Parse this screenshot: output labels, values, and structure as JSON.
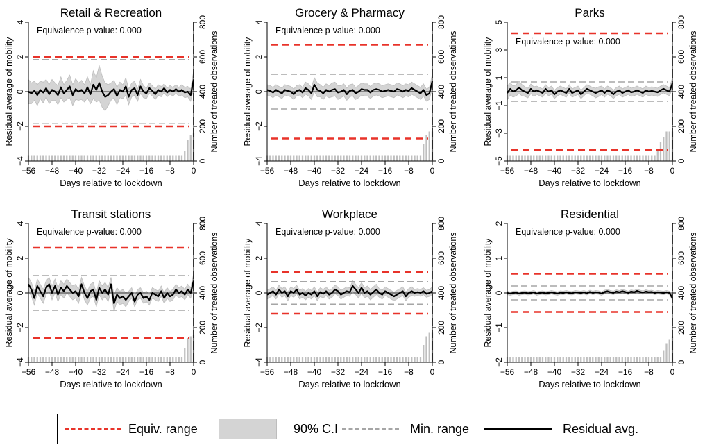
{
  "chart_data": [
    {
      "type": "line",
      "title": "Retail & Recreation",
      "xlabel": "Days relative to lockdown",
      "ylabel": "Residual average of mobility",
      "ylabel2": "Number of treated observations",
      "annotation": "Equivalence p-value: 0.000",
      "xlim": [
        -56,
        0
      ],
      "ylim": [
        -4,
        4
      ],
      "yticks": [
        -4,
        -2,
        0,
        2,
        4
      ],
      "y2lim": [
        0,
        800
      ],
      "y2ticks": [
        0,
        200,
        400,
        600,
        800
      ],
      "equiv_range": [
        -2,
        2
      ],
      "min_range": [
        -1.85,
        1.85
      ],
      "residual": [
        0,
        -0.1,
        0.05,
        -0.2,
        0.1,
        -0.05,
        0.2,
        -0.15,
        0.1,
        0,
        -0.2,
        0.25,
        -0.1,
        0.1,
        0.3,
        -0.2,
        0.15,
        0,
        0.1,
        -0.1,
        0.25,
        -0.15,
        0.4,
        0.1,
        0.5,
        0,
        -0.3,
        -0.2,
        0,
        0.15,
        -0.25,
        0.1,
        0,
        0.3,
        -0.3,
        0.1,
        0.2,
        -0.2,
        0.3,
        0,
        -0.1,
        0.2,
        0.05,
        -0.15,
        0.1,
        0,
        0.2,
        -0.05,
        0.1,
        0,
        0.15,
        0,
        0.1,
        -0.05,
        0,
        -0.2,
        0.7
      ],
      "ci_halfwidth": [
        0.7,
        0.6,
        0.55,
        0.6,
        0.5,
        0.6,
        0.5,
        0.55,
        0.6,
        0.5,
        0.55,
        0.6,
        0.5,
        0.55,
        0.65,
        0.6,
        0.6,
        0.5,
        0.55,
        0.5,
        0.6,
        0.55,
        0.8,
        0.7,
        1,
        0.9,
        0.8,
        0.6,
        0.5,
        0.5,
        0.5,
        0.45,
        0.4,
        0.5,
        0.45,
        0.4,
        0.4,
        0.35,
        0.4,
        0.35,
        0.3,
        0.3,
        0.3,
        0.3,
        0.3,
        0.3,
        0.25,
        0.25,
        0.25,
        0.25,
        0.25,
        0.25,
        0.3,
        0.3,
        0.3,
        0.35,
        0.5
      ],
      "bars": [
        30,
        30,
        30,
        30,
        30,
        30,
        30,
        30,
        30,
        30,
        30,
        30,
        30,
        30,
        30,
        30,
        30,
        30,
        30,
        30,
        30,
        30,
        30,
        30,
        30,
        30,
        30,
        30,
        30,
        30,
        30,
        30,
        30,
        30,
        30,
        30,
        30,
        30,
        30,
        30,
        30,
        30,
        30,
        30,
        30,
        30,
        30,
        30,
        30,
        30,
        30,
        30,
        30,
        60,
        120,
        150,
        160
      ]
    },
    {
      "type": "line",
      "title": "Grocery & Pharmacy",
      "xlabel": "Days relative to lockdown",
      "ylabel": "Residual average of mobility",
      "ylabel2": "Number of treated observations",
      "annotation": "Equivalence p-value: 0.000",
      "xlim": [
        -56,
        0
      ],
      "ylim": [
        -4,
        4
      ],
      "yticks": [
        -4,
        -2,
        0,
        2,
        4
      ],
      "y2lim": [
        0,
        800
      ],
      "y2ticks": [
        0,
        200,
        400,
        600,
        800
      ],
      "equiv_range": [
        -2.7,
        2.7
      ],
      "min_range": [
        -1,
        1
      ],
      "residual": [
        0.1,
        0.05,
        -0.05,
        0.1,
        0,
        -0.1,
        0.1,
        0.05,
        0,
        -0.15,
        0.05,
        0.1,
        -0.05,
        0.2,
        0.1,
        -0.1,
        0.4,
        0.1,
        0.05,
        -0.1,
        0.1,
        0,
        0.1,
        0.15,
        -0.05,
        0,
        0.1,
        -0.15,
        0.05,
        0.1,
        -0.1,
        0,
        0.15,
        0.1,
        0.1,
        -0.05,
        0.1,
        0.15,
        0.1,
        0,
        0.05,
        0.1,
        0.05,
        0,
        0.15,
        0.1,
        0,
        0.1,
        0.05,
        0.2,
        0.1,
        0,
        -0.1,
        0.1,
        -0.2,
        -0.1,
        0.6
      ],
      "ci_halfwidth": [
        0.3,
        0.3,
        0.3,
        0.3,
        0.3,
        0.3,
        0.3,
        0.3,
        0.3,
        0.3,
        0.3,
        0.3,
        0.3,
        0.35,
        0.35,
        0.35,
        0.4,
        0.4,
        0.35,
        0.35,
        0.35,
        0.35,
        0.4,
        0.4,
        0.4,
        0.35,
        0.35,
        0.35,
        0.35,
        0.35,
        0.35,
        0.35,
        0.35,
        0.35,
        0.35,
        0.35,
        0.35,
        0.35,
        0.35,
        0.35,
        0.35,
        0.35,
        0.35,
        0.35,
        0.35,
        0.35,
        0.35,
        0.35,
        0.35,
        0.35,
        0.35,
        0.35,
        0.35,
        0.35,
        0.35,
        0.35,
        0.4
      ],
      "bars": [
        30,
        30,
        30,
        30,
        30,
        30,
        30,
        30,
        30,
        30,
        30,
        30,
        30,
        30,
        30,
        30,
        30,
        30,
        30,
        30,
        30,
        30,
        30,
        30,
        30,
        30,
        30,
        30,
        30,
        30,
        30,
        30,
        30,
        30,
        30,
        30,
        30,
        30,
        30,
        30,
        30,
        30,
        30,
        30,
        30,
        30,
        30,
        30,
        30,
        30,
        30,
        30,
        30,
        100,
        150,
        170,
        170
      ]
    },
    {
      "type": "line",
      "title": "Parks",
      "xlabel": "Days relative to lockdown",
      "ylabel": "Residual average of mobility",
      "ylabel2": "Number of treated observations",
      "annotation": "Equivalence p-value: 0.000",
      "xlim": [
        -56,
        0
      ],
      "ylim": [
        -5,
        5
      ],
      "yticks": [
        -5,
        -3,
        -1,
        1,
        3,
        5
      ],
      "y2lim": [
        0,
        800
      ],
      "y2ticks": [
        0,
        200,
        400,
        600,
        800
      ],
      "equiv_range": [
        -4.2,
        4.2
      ],
      "min_range": [
        -0.7,
        0.7
      ],
      "residual": [
        -0.1,
        0.2,
        0,
        0.1,
        0.3,
        0.1,
        0,
        -0.1,
        0.2,
        0,
        0.1,
        0,
        -0.1,
        0.2,
        0,
        0.1,
        -0.2,
        0,
        0.1,
        0,
        -0.1,
        0.2,
        -0.1,
        0,
        0.1,
        -0.2,
        0,
        0.2,
        0.1,
        0,
        -0.1,
        0,
        0.1,
        -0.1,
        0.1,
        0,
        -0.2,
        0,
        0.1,
        -0.1,
        0,
        0.1,
        -0.05,
        0,
        0.1,
        0,
        -0.1,
        0.1,
        0,
        0.05,
        0,
        -0.05,
        0.1,
        0.2,
        0.1,
        0,
        0.6
      ],
      "ci_halfwidth": [
        0.5,
        0.45,
        0.4,
        0.4,
        0.45,
        0.4,
        0.35,
        0.35,
        0.35,
        0.35,
        0.3,
        0.3,
        0.3,
        0.3,
        0.3,
        0.3,
        0.3,
        0.3,
        0.3,
        0.3,
        0.3,
        0.3,
        0.3,
        0.3,
        0.3,
        0.3,
        0.3,
        0.3,
        0.3,
        0.3,
        0.35,
        0.35,
        0.3,
        0.3,
        0.3,
        0.3,
        0.3,
        0.3,
        0.3,
        0.3,
        0.3,
        0.3,
        0.3,
        0.3,
        0.3,
        0.3,
        0.3,
        0.3,
        0.3,
        0.3,
        0.3,
        0.3,
        0.3,
        0.3,
        0.3,
        0.3,
        0.4
      ],
      "bars": [
        30,
        30,
        30,
        30,
        30,
        30,
        30,
        30,
        30,
        30,
        30,
        30,
        30,
        30,
        30,
        30,
        30,
        30,
        30,
        30,
        30,
        30,
        30,
        30,
        30,
        30,
        30,
        30,
        30,
        30,
        30,
        30,
        30,
        30,
        30,
        30,
        30,
        30,
        30,
        30,
        30,
        30,
        30,
        30,
        30,
        30,
        30,
        30,
        30,
        30,
        30,
        70,
        110,
        140,
        170,
        170,
        170
      ]
    },
    {
      "type": "line",
      "title": "Transit stations",
      "xlabel": "Days relative to lockdown",
      "ylabel": "Residual average of mobility",
      "ylabel2": "Number of treated observations",
      "annotation": "Equivalence p-value: 0.000",
      "xlim": [
        -56,
        0
      ],
      "ylim": [
        -4,
        4
      ],
      "yticks": [
        -4,
        -2,
        0,
        2,
        4
      ],
      "y2lim": [
        0,
        800
      ],
      "y2ticks": [
        0,
        200,
        400,
        600,
        800
      ],
      "equiv_range": [
        -2.6,
        2.6
      ],
      "min_range": [
        -1,
        1
      ],
      "residual": [
        0.5,
        0.2,
        -0.3,
        0.4,
        0.1,
        -0.2,
        0.3,
        0.5,
        0,
        0.4,
        -0.1,
        0.3,
        0.1,
        0.4,
        0.2,
        0,
        0.1,
        -0.2,
        0.5,
        0,
        -0.3,
        0.1,
        0.2,
        -0.4,
        0.3,
        0,
        0.2,
        -0.1,
        0.5,
        -0.6,
        -0.1,
        -0.3,
        -0.2,
        -0.4,
        -0.2,
        0,
        -0.5,
        -0.1,
        0,
        -0.3,
        -0.2,
        -0.4,
        0,
        -0.1,
        -0.2,
        0.1,
        -0.3,
        0,
        -0.2,
        -0.1,
        0.2,
        0,
        0.1,
        -0.1,
        0.2,
        0,
        0.7
      ],
      "ci_halfwidth": [
        0.4,
        0.4,
        0.4,
        0.4,
        0.4,
        0.4,
        0.4,
        0.4,
        0.4,
        0.4,
        0.4,
        0.4,
        0.4,
        0.4,
        0.4,
        0.4,
        0.4,
        0.4,
        0.4,
        0.4,
        0.4,
        0.4,
        0.4,
        0.4,
        0.4,
        0.4,
        0.4,
        0.4,
        0.4,
        0.45,
        0.4,
        0.4,
        0.4,
        0.4,
        0.3,
        0.3,
        0.3,
        0.3,
        0.3,
        0.3,
        0.3,
        0.3,
        0.3,
        0.3,
        0.3,
        0.3,
        0.3,
        0.3,
        0.3,
        0.3,
        0.3,
        0.3,
        0.3,
        0.3,
        0.3,
        0.3,
        0.4
      ],
      "bars": [
        30,
        30,
        30,
        30,
        30,
        30,
        30,
        30,
        30,
        30,
        30,
        30,
        30,
        30,
        30,
        30,
        30,
        30,
        30,
        30,
        30,
        30,
        30,
        30,
        30,
        30,
        30,
        30,
        30,
        30,
        30,
        30,
        30,
        30,
        30,
        30,
        30,
        30,
        30,
        30,
        30,
        30,
        30,
        30,
        30,
        30,
        30,
        30,
        30,
        30,
        30,
        30,
        30,
        80,
        140,
        150,
        160
      ]
    },
    {
      "type": "line",
      "title": "Workplace",
      "xlabel": "Days relative to lockdown",
      "ylabel": "Residual average of mobility",
      "ylabel2": "Number of treated observations",
      "annotation": "Equivalence p-value: 0.000",
      "xlim": [
        -56,
        0
      ],
      "ylim": [
        -4,
        4
      ],
      "yticks": [
        -4,
        -2,
        0,
        2,
        4
      ],
      "y2lim": [
        0,
        800
      ],
      "y2ticks": [
        0,
        200,
        400,
        600,
        800
      ],
      "equiv_range": [
        -1.2,
        1.2
      ],
      "min_range": [
        -0.65,
        0.65
      ],
      "residual": [
        -0.1,
        0,
        0.1,
        -0.1,
        0.2,
        0,
        0.1,
        -0.2,
        0.1,
        0,
        0.2,
        -0.1,
        0,
        -0.15,
        0,
        -0.1,
        0.1,
        -0.2,
        0.05,
        -0.05,
        0.1,
        -0.1,
        0,
        0.2,
        0.1,
        -0.1,
        0,
        0.1,
        0.05,
        0.4,
        0.2,
        0,
        0.3,
        0,
        0.1,
        -0.1,
        0.05,
        0.2,
        0,
        -0.1,
        0.1,
        0,
        -0.1,
        -0.2,
        -0.1,
        0,
        0.1,
        -0.2,
        0,
        0.1,
        0,
        0.05,
        0,
        0.1,
        -0.05,
        0,
        0.1
      ],
      "ci_halfwidth": [
        0.25,
        0.25,
        0.25,
        0.25,
        0.25,
        0.25,
        0.25,
        0.25,
        0.25,
        0.25,
        0.25,
        0.25,
        0.25,
        0.25,
        0.25,
        0.25,
        0.25,
        0.25,
        0.25,
        0.25,
        0.25,
        0.25,
        0.25,
        0.25,
        0.25,
        0.25,
        0.25,
        0.25,
        0.25,
        0.3,
        0.3,
        0.3,
        0.3,
        0.3,
        0.3,
        0.3,
        0.3,
        0.3,
        0.25,
        0.25,
        0.25,
        0.25,
        0.25,
        0.25,
        0.25,
        0.25,
        0.25,
        0.25,
        0.25,
        0.25,
        0.2,
        0.2,
        0.2,
        0.2,
        0.2,
        0.2,
        0.25
      ],
      "bars": [
        30,
        30,
        30,
        30,
        30,
        30,
        30,
        30,
        30,
        30,
        30,
        30,
        30,
        30,
        30,
        30,
        30,
        30,
        30,
        30,
        30,
        30,
        30,
        30,
        30,
        30,
        30,
        30,
        30,
        30,
        30,
        30,
        30,
        30,
        30,
        30,
        30,
        30,
        30,
        30,
        30,
        30,
        30,
        30,
        30,
        30,
        30,
        30,
        30,
        30,
        30,
        30,
        30,
        100,
        150,
        170,
        170
      ]
    },
    {
      "type": "line",
      "title": "Residential",
      "xlabel": "Days relative to lockdown",
      "ylabel": "Residual average of mobility",
      "ylabel2": "Number of treated observations",
      "annotation": "Equivalence p-value: 0.000",
      "xlim": [
        -56,
        0
      ],
      "ylim": [
        -2,
        2
      ],
      "yticks": [
        -2,
        -1,
        0,
        1,
        2
      ],
      "y2lim": [
        0,
        800
      ],
      "y2ticks": [
        0,
        200,
        400,
        600,
        800
      ],
      "equiv_range": [
        -0.55,
        0.55
      ],
      "min_range": [
        -0.2,
        0.2
      ],
      "residual": [
        0,
        -0.02,
        0,
        0.01,
        -0.02,
        0,
        0.01,
        -0.01,
        0,
        0.02,
        -0.02,
        0,
        0.01,
        -0.01,
        0,
        0.02,
        0,
        -0.02,
        0.01,
        0,
        0.02,
        0,
        -0.01,
        0.02,
        0.01,
        0,
        0.02,
        -0.01,
        0.03,
        0,
        0.02,
        0.01,
        -0.02,
        0.03,
        0.05,
        0.02,
        0,
        0.04,
        0.02,
        0.05,
        0.03,
        0,
        0.04,
        0.02,
        0.06,
        0.03,
        0.01,
        0.04,
        0.02,
        0.03,
        0,
        0.02,
        0.01,
        0,
        0.02,
        0,
        -0.15
      ],
      "ci_halfwidth": [
        0.05,
        0.05,
        0.05,
        0.05,
        0.05,
        0.05,
        0.05,
        0.05,
        0.05,
        0.05,
        0.05,
        0.05,
        0.05,
        0.05,
        0.05,
        0.05,
        0.05,
        0.05,
        0.05,
        0.05,
        0.05,
        0.05,
        0.05,
        0.05,
        0.05,
        0.05,
        0.05,
        0.05,
        0.05,
        0.05,
        0.05,
        0.05,
        0.05,
        0.05,
        0.05,
        0.05,
        0.05,
        0.05,
        0.05,
        0.05,
        0.05,
        0.05,
        0.05,
        0.05,
        0.05,
        0.05,
        0.05,
        0.05,
        0.05,
        0.05,
        0.05,
        0.05,
        0.05,
        0.05,
        0.05,
        0.05,
        0.06
      ],
      "bars": [
        30,
        30,
        30,
        30,
        30,
        30,
        30,
        30,
        30,
        30,
        30,
        30,
        30,
        30,
        30,
        30,
        30,
        30,
        30,
        30,
        30,
        30,
        30,
        30,
        30,
        30,
        30,
        30,
        30,
        30,
        30,
        30,
        30,
        30,
        30,
        30,
        30,
        30,
        30,
        30,
        30,
        30,
        30,
        30,
        30,
        30,
        30,
        30,
        30,
        30,
        30,
        30,
        30,
        70,
        110,
        130,
        150
      ]
    }
  ],
  "legend": {
    "items": [
      {
        "label": "Equiv. range"
      },
      {
        "label": "90% C.I"
      },
      {
        "label": "Min. range"
      },
      {
        "label": "Residual avg."
      }
    ]
  },
  "colors": {
    "equiv": "#e8332a",
    "min": "#a6a6a6",
    "ci_fill": "#d4d4d4",
    "ci_edge": "#bdbdbd",
    "line": "#000000",
    "bar": "#bfbfbf",
    "lockdown_line": "#000000"
  }
}
